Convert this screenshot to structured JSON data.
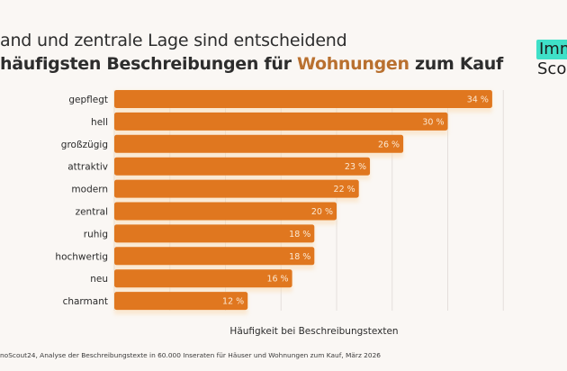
{
  "title": {
    "line1": "and und zentrale Lage sind entscheidend",
    "line2_prefix": "häufigsten Beschreibungen für ",
    "line2_highlight": "Wohnungen",
    "line2_suffix": " zum Kauf"
  },
  "logo": {
    "top": "Imm",
    "bottom": "Sco",
    "highlight_color": "#3fe0c8"
  },
  "source": "noScout24, Analyse der Beschreibungstexte in 60.000 Inseraten für Häuser und Wohnungen zum Kauf, März 2026",
  "colors": {
    "bar": "#e0771f",
    "highlight_text": "#b9702f",
    "background": "#faf7f4",
    "gridline": "#e4dfdb"
  },
  "chart_data": {
    "type": "bar",
    "orientation": "horizontal",
    "title": "häufigsten Beschreibungen für Wohnungen zum Kauf",
    "categories": [
      "gepflegt",
      "hell",
      "großzügig",
      "attraktiv",
      "modern",
      "zentral",
      "ruhig",
      "hochwertig",
      "neu",
      "charmant"
    ],
    "values": [
      34,
      30,
      26,
      23,
      22,
      20,
      18,
      18,
      16,
      12
    ],
    "value_labels": [
      "34 %",
      "30 %",
      "26 %",
      "23 %",
      "22 %",
      "20 %",
      "18 %",
      "18 %",
      "16 %",
      "12 %"
    ],
    "unit": "%",
    "xlabel": "Häufigkeit bei Beschreibungstexten",
    "ylabel": "",
    "xlim": [
      0,
      35
    ],
    "grid": true,
    "grid_step": 5,
    "legend": "none"
  }
}
